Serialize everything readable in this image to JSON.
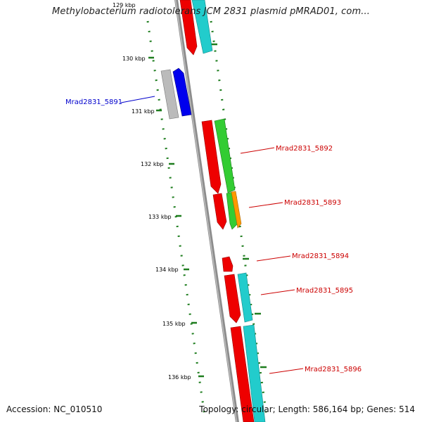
{
  "title": "Methylobacterium radiotolerans JCM 2831 plasmid pMRAD01, com...",
  "footer": {
    "accession": "Accession: NC_010510",
    "summary": "Topology: circular; Length: 586,164 bp; Genes: 514"
  },
  "colors": {
    "backbone": "#8c8c8c",
    "tick": "#1e7d1e",
    "label_red": "#cc0000",
    "label_blue": "#0000cc"
  },
  "ticks": [
    "129 kbp",
    "130 kbp",
    "131 kbp",
    "132 kbp",
    "133 kbp",
    "134 kbp",
    "135 kbp",
    "136 kbp"
  ],
  "gene_labels": [
    {
      "text": "Mrad2831_5891",
      "color": "#0000cc"
    },
    {
      "text": "Mrad2831_5892",
      "color": "#cc0000"
    },
    {
      "text": "Mrad2831_5893",
      "color": "#cc0000"
    },
    {
      "text": "Mrad2831_5894",
      "color": "#cc0000"
    },
    {
      "text": "Mrad2831_5895",
      "color": "#cc0000"
    },
    {
      "text": "Mrad2831_5896",
      "color": "#cc0000"
    }
  ]
}
